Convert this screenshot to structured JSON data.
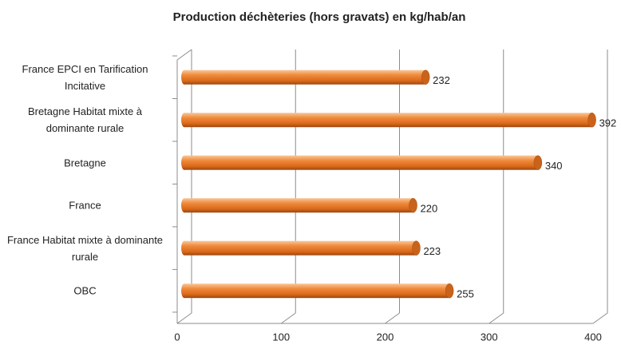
{
  "chart_data": {
    "type": "bar",
    "orientation": "horizontal",
    "title": "Production déchèteries (hors gravats) en kg/hab/an",
    "categories": [
      "France EPCI en Tarification Incitative",
      "Bretagne Habitat mixte à dominante rurale",
      "Bretagne",
      "France",
      "France Habitat mixte à dominante rurale",
      "OBC"
    ],
    "values": [
      232,
      392,
      340,
      220,
      223,
      255
    ],
    "color": "#e8761e",
    "xlim": [
      0,
      400
    ],
    "xticks": [
      0,
      100,
      200,
      300,
      400
    ],
    "grid": true
  }
}
